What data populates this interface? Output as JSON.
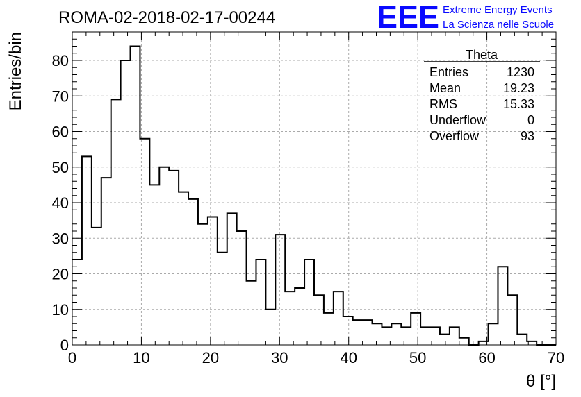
{
  "header": {
    "run_title": "ROMA-02-2018-02-17-00244",
    "logo_text": "EEE",
    "logo_line1": "Extreme Energy Events",
    "logo_line2": "La Scienza nelle Scuole",
    "logo_color": "#0a0aff"
  },
  "stats": {
    "title": "Theta",
    "rows": [
      {
        "label": "Entries",
        "value": "1230"
      },
      {
        "label": "Mean",
        "value": "19.23"
      },
      {
        "label": "RMS",
        "value": "15.33"
      },
      {
        "label": "Underflow",
        "value": "0"
      },
      {
        "label": "Overflow",
        "value": "93"
      }
    ]
  },
  "chart_data": {
    "type": "histogram",
    "xlabel": "θ [°]",
    "ylabel": "Entries/bin",
    "xlim": [
      0,
      70
    ],
    "ylim": [
      0,
      88
    ],
    "bin_width": 1.4,
    "bin_edges_start": 0,
    "values": [
      24,
      53,
      33,
      47,
      69,
      80,
      84,
      58,
      45,
      50,
      49,
      43,
      41,
      34,
      36,
      26,
      37,
      32,
      18,
      24,
      10,
      31,
      15,
      16,
      24,
      14,
      9,
      15,
      8,
      7,
      7,
      6,
      5,
      6,
      5,
      9,
      5,
      5,
      3,
      5,
      2,
      0,
      1,
      6,
      22,
      14,
      3,
      1,
      0,
      0
    ],
    "xticks": [
      0,
      10,
      20,
      30,
      40,
      50,
      60,
      70
    ],
    "yticks": [
      0,
      10,
      20,
      30,
      40,
      50,
      60,
      70,
      80
    ],
    "grid": true,
    "line_color": "#000000"
  }
}
